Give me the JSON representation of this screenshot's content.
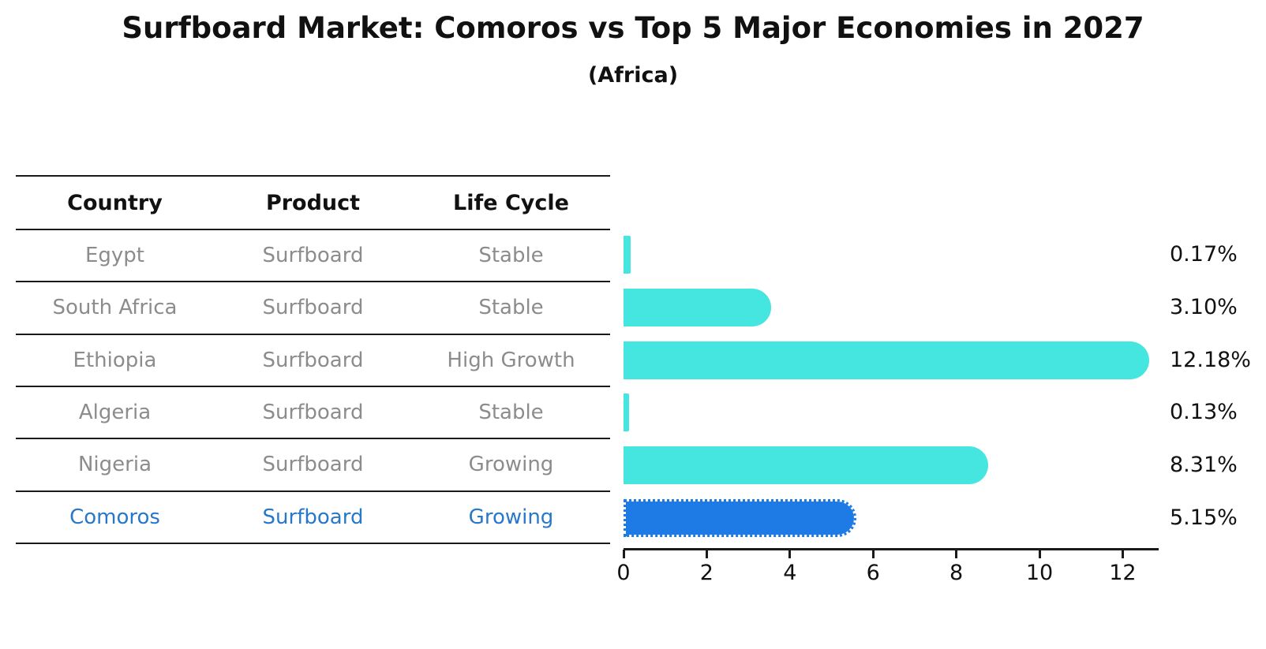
{
  "chart_data": {
    "type": "bar",
    "orientation": "horizontal",
    "title": "Surfboard Market: Comoros vs Top 5 Major Economies in 2027",
    "subtitle": "(Africa)",
    "categories": [
      "Egypt",
      "South Africa",
      "Ethiopia",
      "Algeria",
      "Nigeria",
      "Comoros"
    ],
    "values": [
      0.17,
      3.1,
      12.18,
      0.13,
      8.31,
      5.15
    ],
    "value_labels": [
      "0.17%",
      "3.10%",
      "12.18%",
      "0.13%",
      "8.31%",
      "5.15%"
    ],
    "x_ticks": [
      0,
      2,
      4,
      6,
      8,
      10,
      12
    ],
    "xlim": [
      0,
      12.85
    ],
    "xlabel": "",
    "ylabel": "",
    "grid": false,
    "legend": null,
    "bar_color_default": "#45E5E0",
    "bar_color_highlight": "#1E7AE4",
    "highlight_index": 5,
    "highlight_edge_style": "dotted"
  },
  "table": {
    "headers": [
      "Country",
      "Product",
      "Life Cycle"
    ],
    "rows": [
      {
        "country": "Egypt",
        "product": "Surfboard",
        "life_cycle": "Stable",
        "highlight": false
      },
      {
        "country": "South Africa",
        "product": "Surfboard",
        "life_cycle": "Stable",
        "highlight": false
      },
      {
        "country": "Ethiopia",
        "product": "Surfboard",
        "life_cycle": "High Growth",
        "highlight": false
      },
      {
        "country": "Algeria",
        "product": "Surfboard",
        "life_cycle": "Stable",
        "highlight": false
      },
      {
        "country": "Nigeria",
        "product": "Surfboard",
        "life_cycle": "Growing",
        "highlight": false
      },
      {
        "country": "Comoros",
        "product": "Surfboard",
        "life_cycle": "Growing",
        "highlight": true
      }
    ],
    "colors": {
      "header_text": "#111111",
      "row_text": "#8c8c8c",
      "highlight_text": "#2878C9",
      "line": "#1a1a1a"
    }
  }
}
